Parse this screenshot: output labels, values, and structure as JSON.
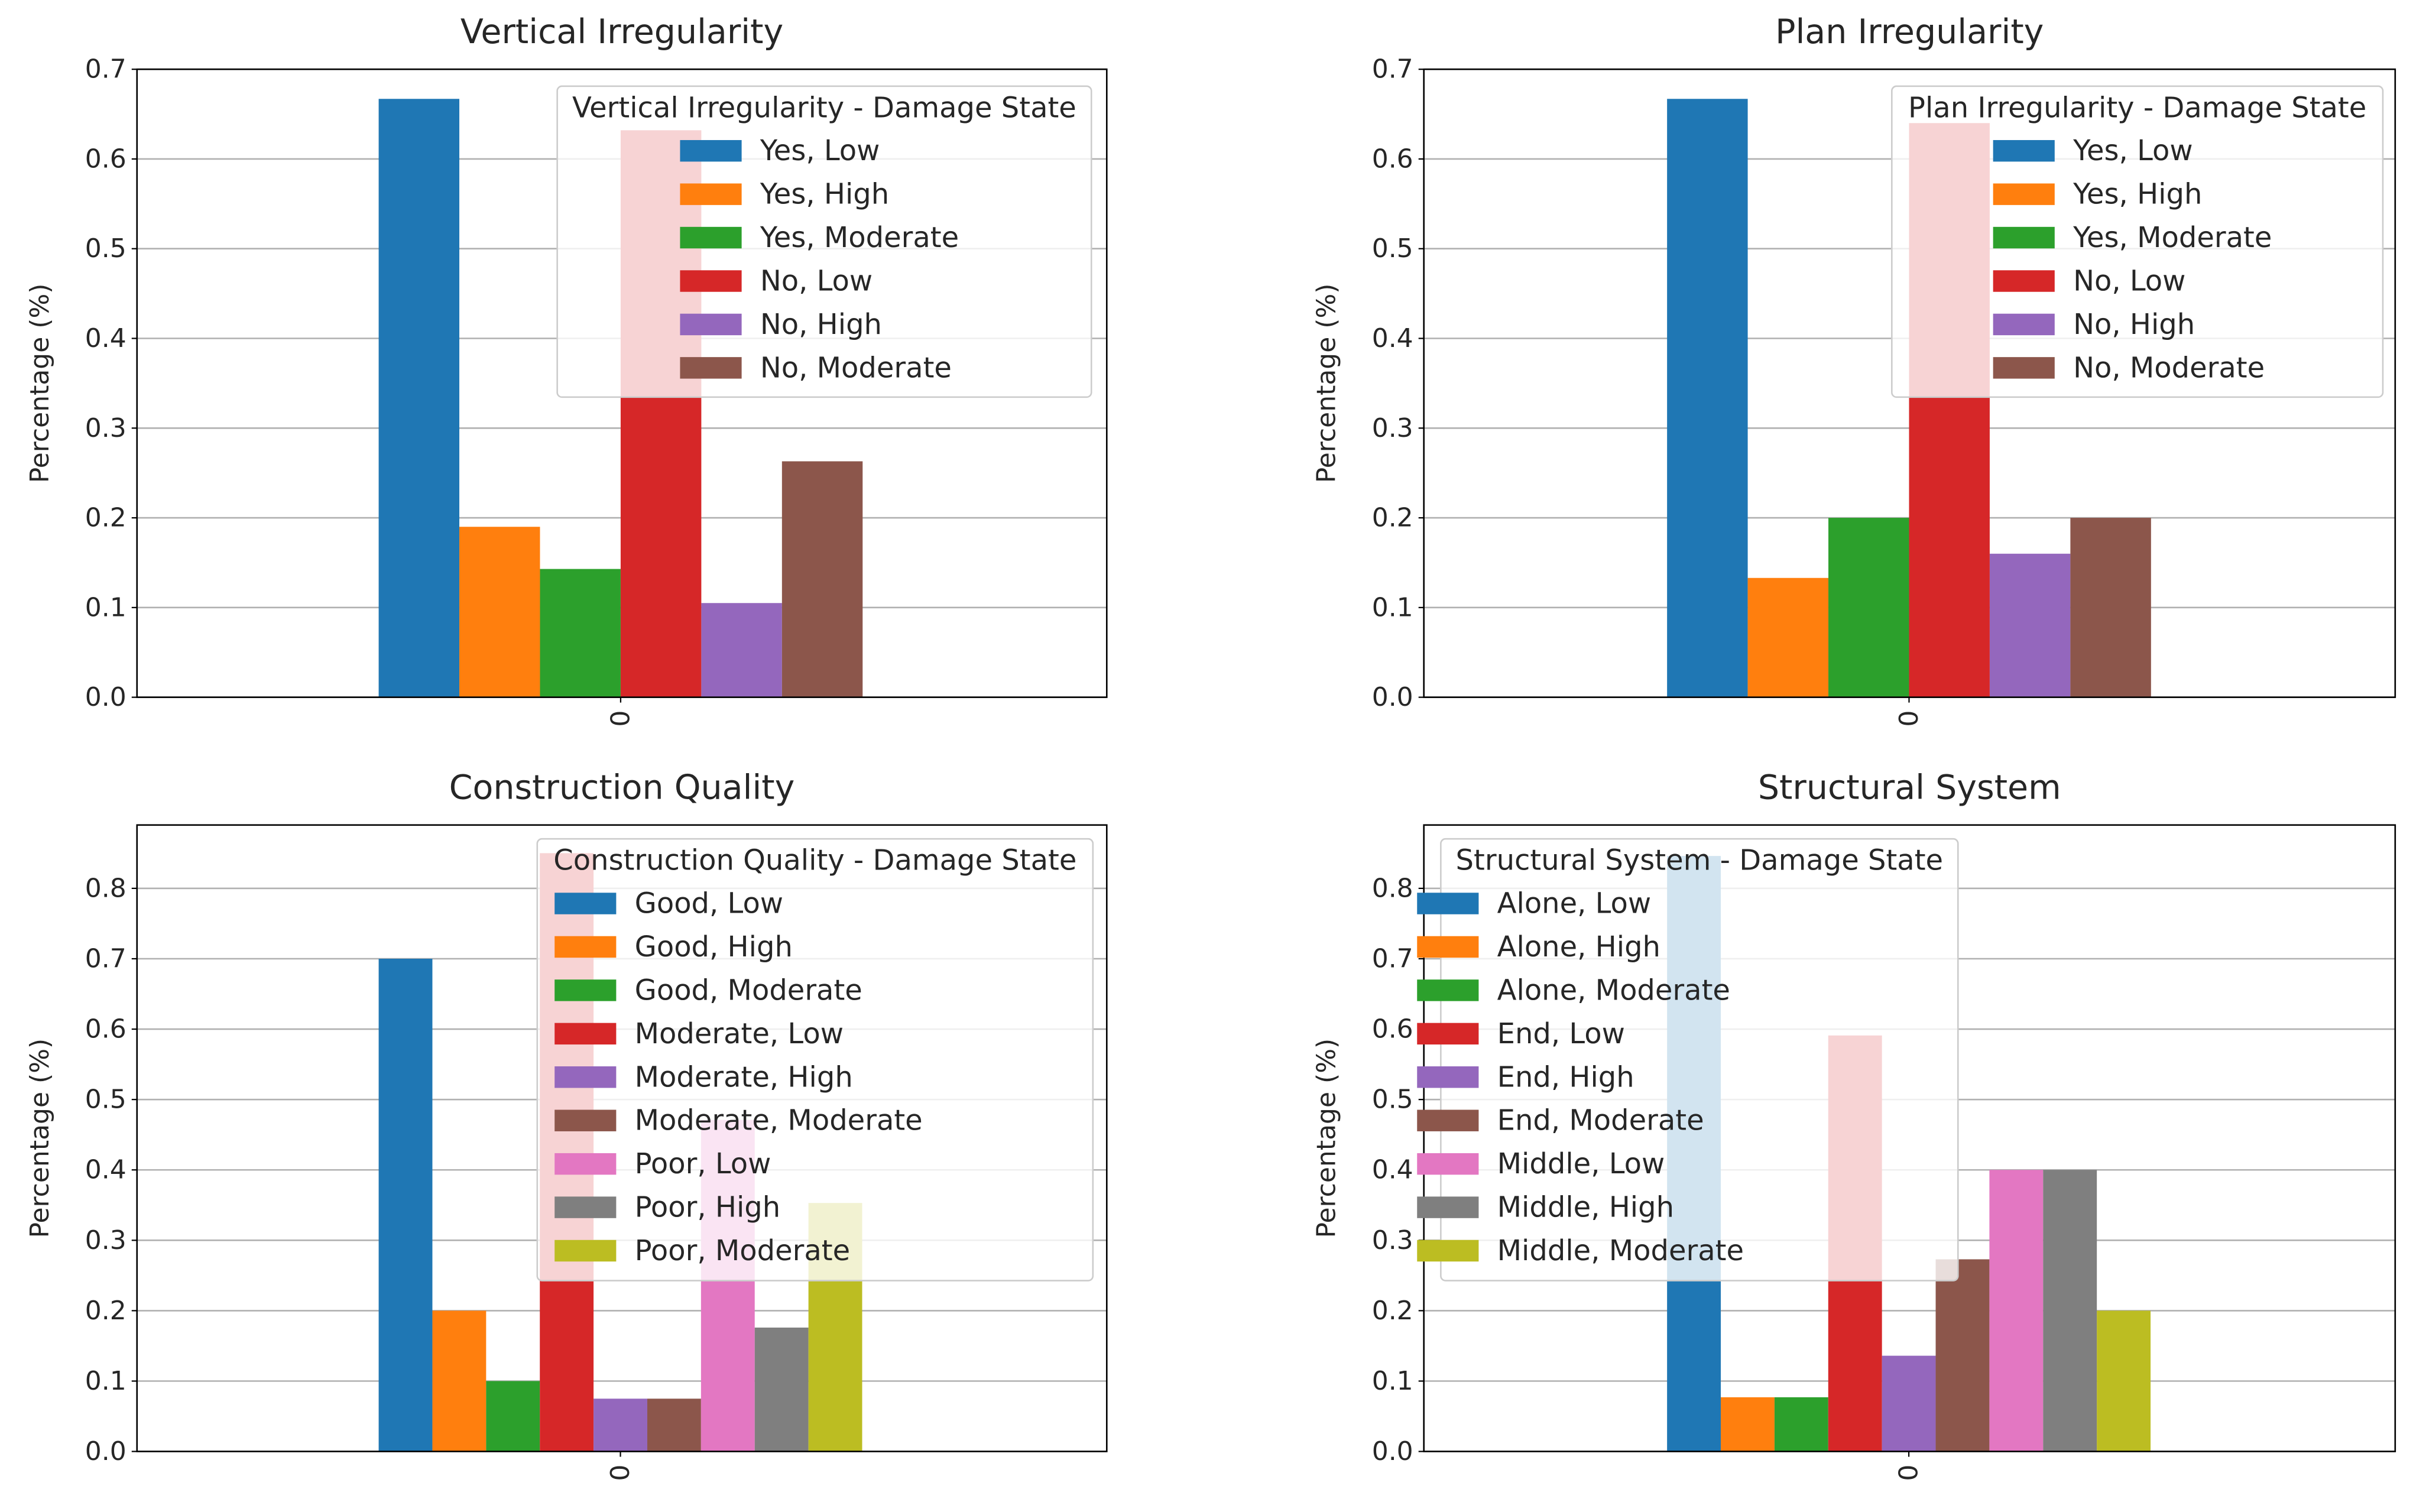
{
  "figure": {
    "panel_count": 4
  },
  "chart_data": [
    {
      "type": "bar",
      "title": "Vertical Irregularity",
      "ylabel": "Percentage (%)",
      "xlabel": "",
      "categories": [
        "0"
      ],
      "ylim": [
        0,
        0.7
      ],
      "yticks": [
        "0.0",
        "0.1",
        "0.2",
        "0.3",
        "0.4",
        "0.5",
        "0.6",
        "0.7"
      ],
      "grid": true,
      "legend_title": "Vertical Irregularity - Damage State",
      "legend_position": "upper right",
      "series": [
        {
          "name": "Yes, Low",
          "values": [
            0.667
          ],
          "color": "#1f77b4"
        },
        {
          "name": "Yes, High",
          "values": [
            0.19
          ],
          "color": "#ff7f0e"
        },
        {
          "name": "Yes, Moderate",
          "values": [
            0.143
          ],
          "color": "#2ca02c"
        },
        {
          "name": "No, Low",
          "values": [
            0.632
          ],
          "color": "#d62728"
        },
        {
          "name": "No, High",
          "values": [
            0.105
          ],
          "color": "#9467bd"
        },
        {
          "name": "No, Moderate",
          "values": [
            0.263
          ],
          "color": "#8c564b"
        }
      ]
    },
    {
      "type": "bar",
      "title": "Plan Irregularity",
      "ylabel": "Percentage (%)",
      "xlabel": "",
      "categories": [
        "0"
      ],
      "ylim": [
        0,
        0.7
      ],
      "yticks": [
        "0.0",
        "0.1",
        "0.2",
        "0.3",
        "0.4",
        "0.5",
        "0.6",
        "0.7"
      ],
      "grid": true,
      "legend_title": "Plan Irregularity - Damage State",
      "legend_position": "upper right",
      "series": [
        {
          "name": "Yes, Low",
          "values": [
            0.667
          ],
          "color": "#1f77b4"
        },
        {
          "name": "Yes, High",
          "values": [
            0.133
          ],
          "color": "#ff7f0e"
        },
        {
          "name": "Yes, Moderate",
          "values": [
            0.2
          ],
          "color": "#2ca02c"
        },
        {
          "name": "No, Low",
          "values": [
            0.64
          ],
          "color": "#d62728"
        },
        {
          "name": "No, High",
          "values": [
            0.16
          ],
          "color": "#9467bd"
        },
        {
          "name": "No, Moderate",
          "values": [
            0.2
          ],
          "color": "#8c564b"
        }
      ]
    },
    {
      "type": "bar",
      "title": "Construction Quality",
      "ylabel": "Percentage (%)",
      "xlabel": "",
      "categories": [
        "0"
      ],
      "ylim": [
        0,
        0.89
      ],
      "yticks": [
        "0.0",
        "0.1",
        "0.2",
        "0.3",
        "0.4",
        "0.5",
        "0.6",
        "0.7",
        "0.8"
      ],
      "grid": true,
      "legend_title": "Construction Quality - Damage State",
      "legend_position": "upper right",
      "series": [
        {
          "name": "Good, Low",
          "values": [
            0.7
          ],
          "color": "#1f77b4"
        },
        {
          "name": "Good, High",
          "values": [
            0.2
          ],
          "color": "#ff7f0e"
        },
        {
          "name": "Good, Moderate",
          "values": [
            0.1
          ],
          "color": "#2ca02c"
        },
        {
          "name": "Moderate, Low",
          "values": [
            0.85
          ],
          "color": "#d62728"
        },
        {
          "name": "Moderate, High",
          "values": [
            0.075
          ],
          "color": "#9467bd"
        },
        {
          "name": "Moderate, Moderate",
          "values": [
            0.075
          ],
          "color": "#8c564b"
        },
        {
          "name": "Poor, Low",
          "values": [
            0.471
          ],
          "color": "#e377c2"
        },
        {
          "name": "Poor, High",
          "values": [
            0.176
          ],
          "color": "#7f7f7f"
        },
        {
          "name": "Poor, Moderate",
          "values": [
            0.353
          ],
          "color": "#bcbd22"
        }
      ]
    },
    {
      "type": "bar",
      "title": "Structural System",
      "ylabel": "Percentage (%)",
      "xlabel": "",
      "categories": [
        "0"
      ],
      "ylim": [
        0,
        0.89
      ],
      "yticks": [
        "0.0",
        "0.1",
        "0.2",
        "0.3",
        "0.4",
        "0.5",
        "0.6",
        "0.7",
        "0.8"
      ],
      "grid": true,
      "legend_title": "Structural System - Damage State",
      "legend_position": "upper left",
      "series": [
        {
          "name": "Alone, Low",
          "values": [
            0.846
          ],
          "color": "#1f77b4"
        },
        {
          "name": "Alone, High",
          "values": [
            0.077
          ],
          "color": "#ff7f0e"
        },
        {
          "name": "Alone, Moderate",
          "values": [
            0.077
          ],
          "color": "#2ca02c"
        },
        {
          "name": "End, Low",
          "values": [
            0.591
          ],
          "color": "#d62728"
        },
        {
          "name": "End, High",
          "values": [
            0.136
          ],
          "color": "#9467bd"
        },
        {
          "name": "End, Moderate",
          "values": [
            0.273
          ],
          "color": "#8c564b"
        },
        {
          "name": "Middle, Low",
          "values": [
            0.4
          ],
          "color": "#e377c2"
        },
        {
          "name": "Middle, High",
          "values": [
            0.4
          ],
          "color": "#7f7f7f"
        },
        {
          "name": "Middle, Moderate",
          "values": [
            0.2
          ],
          "color": "#bcbd22"
        }
      ]
    }
  ]
}
